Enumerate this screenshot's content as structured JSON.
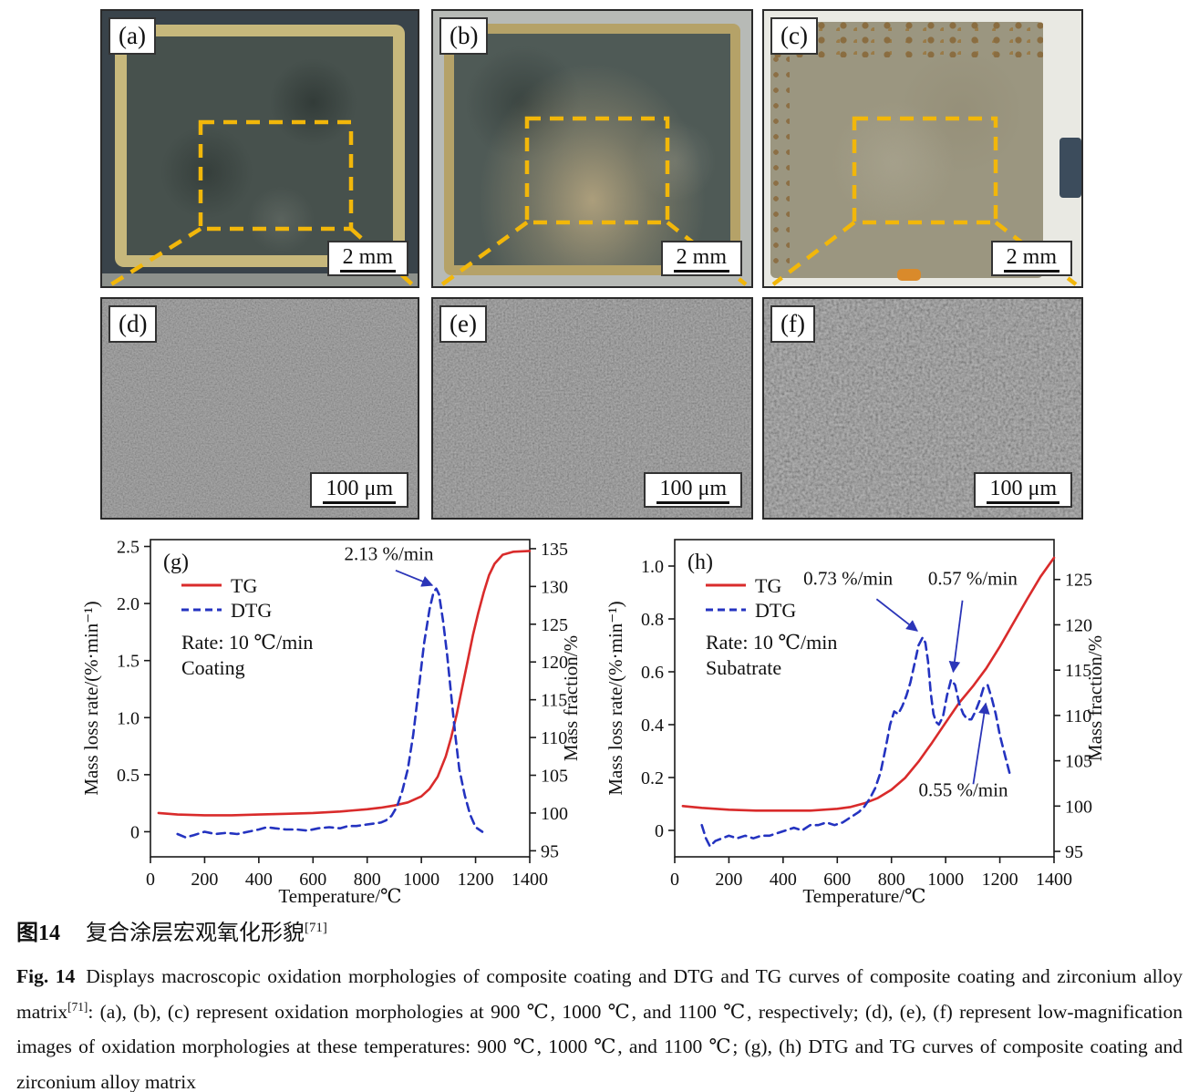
{
  "colors": {
    "tg": "#d92b2b",
    "dtg": "#2433c0",
    "arrow": "#2b35b8",
    "callout": "#f2b70a"
  },
  "panels": {
    "a": {
      "label": "(a)",
      "scale": "2 mm"
    },
    "b": {
      "label": "(b)",
      "scale": "2 mm"
    },
    "c": {
      "label": "(c)",
      "scale": "2 mm"
    },
    "d": {
      "label": "(d)",
      "scale": "100 μm"
    },
    "e": {
      "label": "(e)",
      "scale": "100 μm"
    },
    "f": {
      "label": "(f)",
      "scale": "100 μm"
    }
  },
  "caption": {
    "zh_prefix": "图14",
    "zh_text": "复合涂层宏观氧化形貌",
    "zh_ref": "[71]",
    "en_prefix": "Fig. 14",
    "en_part1": "Displays macroscopic oxidation morphologies of composite coating and DTG and TG curves of composite coating and zirconium alloy matrix",
    "en_ref": "[71]",
    "en_part2": ": (a), (b), (c) represent oxidation morphologies at 900 ℃, 1000 ℃, and 1100 ℃, respectively; (d), (e), (f) represent low-magnification images of oxidation morphologies at these temperatures: 900 ℃, 1000 ℃, and 1100 ℃; (g), (h) DTG and TG curves of composite coating and zirconium alloy matrix"
  },
  "chart_data": [
    {
      "id": "g",
      "type": "line",
      "panel_label": "(g)",
      "xlabel": "Temperature/℃",
      "ylabel_left": "Mass loss rate/(%·min⁻¹)",
      "ylabel_right": "Mass fraction/%",
      "xlim": [
        0,
        1400
      ],
      "x_ticks": [
        "0",
        "200",
        "400",
        "600",
        "800",
        "1000",
        "1200",
        "1400"
      ],
      "yleft_lim": [
        -0.22,
        2.56
      ],
      "yleft_ticks": [
        "0",
        "0.5",
        "1.0",
        "1.5",
        "2.0",
        "2.5"
      ],
      "yright_lim": [
        94.2,
        136.2
      ],
      "yright_ticks": [
        "95",
        "100",
        "105",
        "110",
        "115",
        "120",
        "125",
        "130",
        "135"
      ],
      "notes": [
        "Rate: 10 ℃/min",
        "Coating"
      ],
      "annotations": [
        {
          "text": "2.13 %/min",
          "tx": 880,
          "ty": 2.38,
          "sx": 905,
          "sy": 2.29,
          "ax": 1040,
          "ay": 2.16
        }
      ],
      "series": [
        {
          "name": "TG",
          "axis": "right",
          "color": "#d92b2b",
          "dash": false,
          "x": [
            30,
            100,
            200,
            300,
            400,
            500,
            600,
            700,
            800,
            850,
            900,
            950,
            1000,
            1030,
            1060,
            1090,
            1110,
            1130,
            1150,
            1170,
            1190,
            1210,
            1230,
            1250,
            1270,
            1300,
            1340,
            1400
          ],
          "y": [
            100,
            99.8,
            99.7,
            99.7,
            99.8,
            99.9,
            100,
            100.2,
            100.5,
            100.7,
            101,
            101.4,
            102.2,
            103.2,
            104.8,
            107.5,
            110,
            113,
            116.5,
            120,
            123.5,
            126.5,
            129.2,
            131.5,
            133,
            134.2,
            134.6,
            134.7
          ]
        },
        {
          "name": "DTG",
          "axis": "left",
          "color": "#2433c0",
          "dash": true,
          "x": [
            100,
            130,
            160,
            200,
            240,
            280,
            320,
            360,
            400,
            430,
            460,
            500,
            540,
            580,
            620,
            660,
            700,
            730,
            760,
            790,
            820,
            850,
            870,
            890,
            910,
            930,
            950,
            970,
            990,
            1010,
            1030,
            1045,
            1055,
            1065,
            1080,
            1095,
            1110,
            1125,
            1140,
            1160,
            1180,
            1200,
            1225
          ],
          "y": [
            -0.02,
            -0.05,
            -0.03,
            0,
            -0.02,
            -0.01,
            -0.02,
            0,
            0.02,
            0.04,
            0.03,
            0.02,
            0.02,
            0.01,
            0.03,
            0.04,
            0.03,
            0.05,
            0.05,
            0.06,
            0.07,
            0.08,
            0.1,
            0.14,
            0.22,
            0.36,
            0.55,
            0.85,
            1.25,
            1.65,
            1.95,
            2.1,
            2.13,
            2.08,
            1.85,
            1.55,
            1.2,
            0.85,
            0.55,
            0.32,
            0.15,
            0.04,
            0
          ]
        }
      ]
    },
    {
      "id": "h",
      "type": "line",
      "panel_label": "(h)",
      "xlabel": "Temperature/℃",
      "ylabel_left": "Mass loss rate/(%·min⁻¹)",
      "ylabel_right": "Mass fraction/%",
      "xlim": [
        0,
        1400
      ],
      "x_ticks": [
        "0",
        "200",
        "400",
        "600",
        "800",
        "1000",
        "1200",
        "1400"
      ],
      "yleft_lim": [
        -0.1,
        1.1
      ],
      "yleft_ticks": [
        "0",
        "0.2",
        "0.4",
        "0.6",
        "0.8",
        "1.0"
      ],
      "yright_lim": [
        94.4,
        129.4
      ],
      "yright_ticks": [
        "95",
        "100",
        "105",
        "110",
        "115",
        "120",
        "125"
      ],
      "notes": [
        "Rate: 10 ℃/min",
        "Subatrate"
      ],
      "annotations": [
        {
          "text": "0.73 %/min",
          "tx": 640,
          "ty": 0.93,
          "sx": 745,
          "sy": 0.875,
          "ax": 895,
          "ay": 0.755
        },
        {
          "text": "0.57 %/min",
          "tx": 1100,
          "ty": 0.93,
          "sx": 1062,
          "sy": 0.87,
          "ax": 1028,
          "ay": 0.6
        },
        {
          "text": "0.55 %/min",
          "tx": 1065,
          "ty": 0.13,
          "sx": 1102,
          "sy": 0.175,
          "ax": 1148,
          "ay": 0.48
        }
      ],
      "series": [
        {
          "name": "TG",
          "axis": "right",
          "color": "#d92b2b",
          "dash": false,
          "x": [
            30,
            100,
            200,
            300,
            400,
            500,
            600,
            650,
            700,
            750,
            800,
            850,
            900,
            950,
            1000,
            1050,
            1100,
            1150,
            1200,
            1250,
            1300,
            1350,
            1400
          ],
          "y": [
            100,
            99.8,
            99.6,
            99.5,
            99.5,
            99.5,
            99.7,
            99.9,
            100.3,
            100.9,
            101.8,
            103.1,
            104.9,
            107,
            109.2,
            111.4,
            113.2,
            115.2,
            117.6,
            120.2,
            122.8,
            125.3,
            127.4
          ]
        },
        {
          "name": "DTG",
          "axis": "left",
          "color": "#2433c0",
          "dash": true,
          "x": [
            100,
            115,
            130,
            150,
            175,
            200,
            230,
            260,
            290,
            320,
            350,
            380,
            410,
            440,
            470,
            500,
            530,
            560,
            590,
            620,
            650,
            680,
            700,
            720,
            740,
            760,
            780,
            795,
            810,
            825,
            840,
            855,
            870,
            885,
            900,
            915,
            925,
            935,
            945,
            955,
            965,
            975,
            990,
            1005,
            1020,
            1035,
            1050,
            1065,
            1080,
            1095,
            1110,
            1125,
            1140,
            1155,
            1170,
            1185,
            1200,
            1220,
            1240
          ],
          "y": [
            0.02,
            -0.03,
            -0.06,
            -0.04,
            -0.03,
            -0.02,
            -0.03,
            -0.02,
            -0.03,
            -0.02,
            -0.02,
            -0.01,
            0,
            0.01,
            0,
            0.02,
            0.02,
            0.03,
            0.02,
            0.03,
            0.05,
            0.07,
            0.09,
            0.12,
            0.16,
            0.22,
            0.32,
            0.4,
            0.45,
            0.44,
            0.47,
            0.51,
            0.56,
            0.63,
            0.7,
            0.73,
            0.71,
            0.64,
            0.52,
            0.44,
            0.41,
            0.4,
            0.43,
            0.51,
            0.57,
            0.55,
            0.48,
            0.44,
            0.42,
            0.42,
            0.45,
            0.49,
            0.54,
            0.55,
            0.5,
            0.44,
            0.36,
            0.28,
            0.2
          ]
        }
      ]
    }
  ]
}
